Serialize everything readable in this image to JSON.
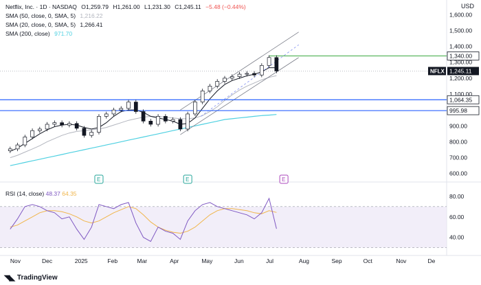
{
  "header": {
    "symbol": "Netflix, Inc. · 1D · NASDAQ",
    "open": "O1,259.79",
    "high": "H1,261.00",
    "low": "L1,231.30",
    "close": "C1,245.11",
    "change": "−5.48 (−0.44%)",
    "currency": "USD"
  },
  "indicators": [
    {
      "label": "SMA (50, close, 0, SMA, 5)",
      "value": "1,216.22"
    },
    {
      "label": "SMA (20, close, 0, SMA, 5)",
      "value": "1,266.41"
    },
    {
      "label": "SMA (200, close)",
      "value": "971.70"
    }
  ],
  "rsi": {
    "label": "RSI (14, close)",
    "value": "48.37",
    "ma_value": "64.35"
  },
  "tags": {
    "symbol": "NFLX",
    "last": "1,245.11",
    "resistance": "1,340.00",
    "level1": "1,064.35",
    "level2": "995.98"
  },
  "brand": "TradingView",
  "colors": {
    "candle": "#131722",
    "sma20": "#131722",
    "sma50": "#b2b5be",
    "sma200": "#4dd0e1",
    "hline": "#2962ff",
    "resistance": "#4caf50",
    "rsi": "#7e57c2",
    "rsi_ma": "#f0b54a",
    "earnings": "#26a69a",
    "earnings_upcoming": "#ab47bc"
  },
  "earnings_markers": [
    "E",
    "E",
    "E"
  ],
  "chart_data": [
    {
      "type": "candlestick",
      "title": "Netflix, Inc. · 1D · NASDAQ",
      "y_axis_ticks": [
        "1,600.00",
        "1,500.00",
        "1,400.00",
        "1,300.00",
        "1,200.00",
        "1,100.00",
        "1,000.00",
        "900.00",
        "800.00",
        "700.00",
        "600.00"
      ],
      "x_axis_ticks": [
        "Nov",
        "Dec",
        "2025",
        "Feb",
        "Mar",
        "Apr",
        "May",
        "Jun",
        "Jul",
        "Aug",
        "Sep",
        "Oct",
        "Nov",
        "De"
      ],
      "ylim": [
        560,
        1640
      ],
      "x_dates": [
        "2024-10-28",
        "2024-11-04",
        "2024-11-11",
        "2024-11-18",
        "2024-11-25",
        "2024-12-02",
        "2024-12-09",
        "2024-12-16",
        "2024-12-23",
        "2024-12-30",
        "2025-01-06",
        "2025-01-13",
        "2025-01-20",
        "2025-01-27",
        "2025-02-03",
        "2025-02-10",
        "2025-02-17",
        "2025-02-24",
        "2025-03-03",
        "2025-03-10",
        "2025-03-17",
        "2025-03-24",
        "2025-03-31",
        "2025-04-07",
        "2025-04-14",
        "2025-04-21",
        "2025-04-28",
        "2025-05-05",
        "2025-05-12",
        "2025-05-19",
        "2025-05-26",
        "2025-06-02",
        "2025-06-09",
        "2025-06-16",
        "2025-06-23",
        "2025-06-30",
        "2025-07-07"
      ],
      "close": [
        755,
        780,
        830,
        870,
        880,
        910,
        920,
        905,
        915,
        885,
        840,
        860,
        960,
        975,
        1000,
        1010,
        1050,
        990,
        930,
        910,
        960,
        930,
        940,
        880,
        975,
        1050,
        1120,
        1150,
        1180,
        1200,
        1210,
        1225,
        1230,
        1220,
        1280,
        1330,
        1245
      ],
      "sma20": [
        740,
        760,
        790,
        820,
        850,
        875,
        895,
        905,
        910,
        905,
        890,
        880,
        890,
        920,
        960,
        990,
        1000,
        1000,
        985,
        960,
        950,
        940,
        930,
        910,
        915,
        950,
        1010,
        1070,
        1120,
        1160,
        1185,
        1200,
        1215,
        1225,
        1240,
        1266,
        1266
      ],
      "sma50": [
        700,
        715,
        735,
        755,
        775,
        800,
        820,
        840,
        855,
        865,
        870,
        875,
        880,
        890,
        905,
        920,
        935,
        945,
        955,
        960,
        960,
        955,
        950,
        945,
        945,
        950,
        965,
        990,
        1020,
        1060,
        1095,
        1125,
        1150,
        1170,
        1190,
        1205,
        1216
      ],
      "sma200": [
        650,
        660,
        670,
        680,
        690,
        700,
        710,
        720,
        730,
        740,
        750,
        760,
        770,
        780,
        790,
        800,
        810,
        820,
        830,
        840,
        850,
        860,
        870,
        880,
        890,
        900,
        910,
        920,
        930,
        940,
        945,
        950,
        955,
        960,
        965,
        968,
        971.7
      ],
      "horizontal_levels": [
        {
          "value": 1340.0,
          "label": "1,340.00"
        },
        {
          "value": 1064.35,
          "label": "1,064.35"
        },
        {
          "value": 995.98,
          "label": "995.98"
        }
      ],
      "channel": {
        "x_start": "2025-04-07",
        "x_end": "2025-07-28"
      }
    },
    {
      "type": "line",
      "title": "RSI (14, close)",
      "y_axis_ticks": [
        "80.00",
        "60.00",
        "40.00"
      ],
      "ylim": [
        25,
        92
      ],
      "band": [
        30,
        70
      ],
      "series": [
        {
          "name": "RSI",
          "values": [
            48,
            58,
            70,
            72,
            70,
            66,
            64,
            58,
            60,
            48,
            38,
            50,
            72,
            70,
            68,
            72,
            74,
            54,
            40,
            36,
            50,
            46,
            44,
            38,
            56,
            66,
            72,
            74,
            70,
            68,
            66,
            64,
            62,
            58,
            64,
            78,
            48.37
          ]
        },
        {
          "name": "RSI MA",
          "values": [
            50,
            52,
            56,
            60,
            64,
            66,
            66,
            65,
            63,
            60,
            56,
            54,
            56,
            60,
            64,
            67,
            70,
            68,
            62,
            55,
            50,
            47,
            45,
            44,
            46,
            50,
            56,
            62,
            66,
            68,
            68,
            67,
            66,
            64,
            63,
            66,
            64.35
          ]
        }
      ]
    }
  ]
}
